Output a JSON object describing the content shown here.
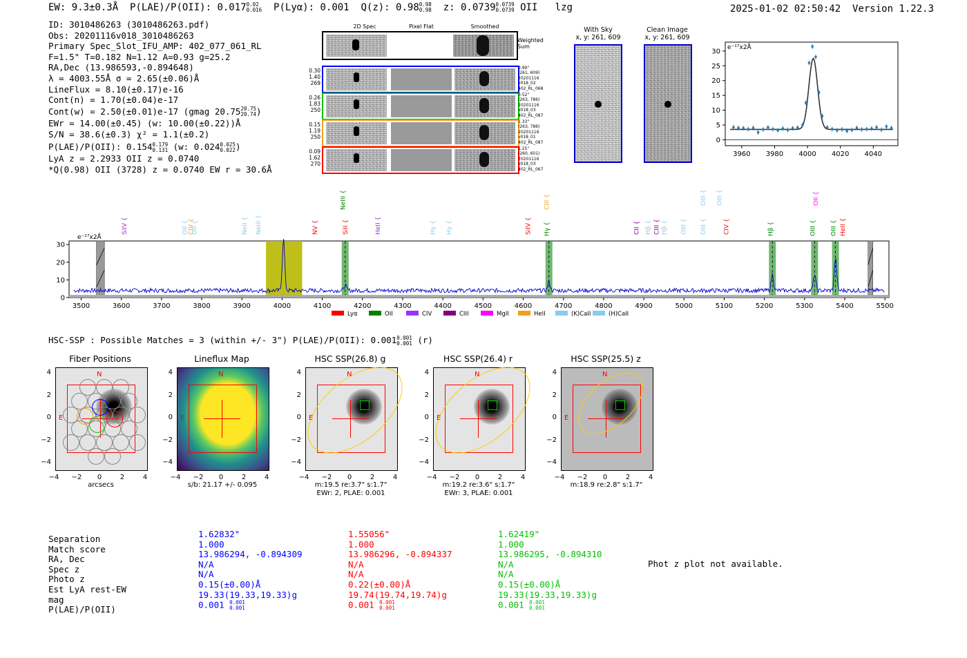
{
  "header": {
    "ew": "EW: 9.3±0.3Å",
    "plae_label": "P(LAE)/P(OII): 0.017",
    "plae_hi": "0.02",
    "plae_lo": "0.016",
    "plya": "P(Lyα): 0.001",
    "qz_label": "Q(z): 0.98",
    "qz_hi": "0.98",
    "qz_lo": "0.98",
    "z_label": "z: 0.0739",
    "z_hi": "0.0739",
    "z_lo": "0.0739",
    "line": "OII",
    "flag": "lzg",
    "timestamp": "2025-01-02 02:50:42",
    "version": "Version 1.22.3"
  },
  "info": {
    "id": "ID: 3010486263 (3010486263.pdf)",
    "obs": "Obs: 20201116v018_3010486263",
    "primary": "Primary Spec_Slot_IFU_AMP: 402_077_061_RL",
    "params": "F=1.5\"  T=0.182  N=1.12  A=0.93  g=25.2",
    "radec": "RA,Dec (13.986593,-0.894648)",
    "lambda": "λ = 4003.55Å  σ = 2.65(±0.06)Å",
    "lineflux": "LineFlux = 8.10(±0.17)e-16",
    "contn": "Cont(n) = 1.70(±0.04)e-17",
    "contw": "Cont(w) = 2.50(±0.01)e-17 (gmag 20.75",
    "contw_hi": "20.75",
    "contw_lo": "20.74",
    "contw_end": ")",
    "ewr": "EWr = 14.00(±0.45) (w: 10.00(±0.22))Å",
    "sn": "S/N = 38.6(±0.3)  χ² = 1.1(±0.2)",
    "plae": "P(LAE)/P(OII): 0.154",
    "plae_hi": "0.179",
    "plae_lo": "0.131",
    "plae_w": "(w: 0.024",
    "plae_w_hi": "0.025",
    "plae_w_lo": "0.022",
    "plae_end": ")",
    "lya": "LyA z = 2.2933  OII z = 0.0740",
    "q": "*Q(0.98) OII (3728) z = 0.0740  EW r = 30.6Å"
  },
  "cutouts": {
    "col_2d": "2D Spec",
    "col_flat": "Pixel Flat",
    "col_smooth": "Smoothed",
    "weighted": "Weighted",
    "sum": "Sum",
    "rows": [
      {
        "left": [
          "0.30",
          "1.40",
          "269"
        ],
        "right": [
          "0.99\"",
          "(261, 609)",
          "20201116",
          "v018_02",
          "402_RL_068"
        ],
        "color": "#0000ff"
      },
      {
        "left": [
          "0.26",
          "1.83",
          "250"
        ],
        "right": [
          "0.52\"",
          "(263, 786)",
          "20201116",
          "v018_03",
          "402_RL_087"
        ],
        "color": "#00c000"
      },
      {
        "left": [
          "0.15",
          "1.19",
          "250"
        ],
        "right": [
          "1.33\"",
          "(263, 786)",
          "20201116",
          "v018_01",
          "402_RL_087"
        ],
        "color": "#f0a020"
      },
      {
        "left": [
          "0.09",
          "1.62",
          "270"
        ],
        "right": [
          "1.25\"",
          "(260, 601)",
          "20201116",
          "v018_03",
          "402_RL_067"
        ],
        "color": "#ff0000"
      }
    ],
    "with_sky": "With Sky",
    "with_sky_xy": "x, y: 261, 609",
    "clean": "Clean Image",
    "clean_xy": "x, y: 261, 609"
  },
  "hsc": {
    "title": "HSC-SSP : Possible Matches = 3 (within +/- 3\")  P(LAE)/P(OII): 0.001",
    "title_hi": "0.001",
    "title_lo": "0.001",
    "title_band": "(r)",
    "panels": [
      {
        "title": "Fiber Positions",
        "cap1": "arcsecs",
        "cap2": ""
      },
      {
        "title": "Lineflux Map",
        "cap1": "s/b: 21.17 +/- 0.095",
        "cap2": ""
      },
      {
        "title": "HSC SSP(26.8) g",
        "cap1": "m:19.5  re:3.7\"  s:1.7\"",
        "cap2": "EWr: 2, PLAE: 0.001"
      },
      {
        "title": "HSC SSP(26.4) r",
        "cap1": "m:19.2  re:3.6\"  s:1.7\"",
        "cap2": "EWr: 3, PLAE: 0.001"
      },
      {
        "title": "HSC SSP(25.5) z",
        "cap1": "m:18.9  re:2.8\"  s:1.7\"",
        "cap2": ""
      }
    ],
    "label_n": "N",
    "label_e": "E",
    "ticks": [
      "4",
      "2",
      "0",
      "−2",
      "−4"
    ],
    "xticks": [
      "−4",
      "−2",
      "0",
      "2",
      "4"
    ]
  },
  "matches": {
    "labels": [
      "Separation",
      "Match score",
      "RA, Dec",
      "Spec z",
      "Photo z",
      "Est LyA rest-EW",
      "mag",
      "P(LAE)/P(OII)"
    ],
    "cols": [
      {
        "color": "#0000ff",
        "sep": "1.62832\"",
        "score": "1.000",
        "radec": "13.986294, -0.894309",
        "specz": "N/A",
        "photz": "N/A",
        "ew": "0.15(±0.00)Å",
        "mag": "19.33(19.33,19.33)g",
        "plae": "0.001",
        "plae_hi": "0.001",
        "plae_lo": "0.001"
      },
      {
        "color": "#ff0000",
        "sep": "1.55056\"",
        "score": "1.000",
        "radec": "13.986296, -0.894337",
        "specz": "N/A",
        "photz": "N/A",
        "ew": "0.22(±0.00)Å",
        "mag": "19.74(19.74,19.74)g",
        "plae": "0.001",
        "plae_hi": "0.001",
        "plae_lo": "0.001"
      },
      {
        "color": "#00c000",
        "sep": "1.62419\"",
        "score": "1.000",
        "radec": "13.986295, -0.894310",
        "specz": "N/A",
        "photz": "N/A",
        "ew": "0.15(±0.00)Å",
        "mag": "19.33(19.33,19.33)g",
        "plae": "0.001",
        "plae_hi": "0.001",
        "plae_lo": "0.001"
      }
    ],
    "phot_z": "Phot z plot not available."
  },
  "chart_data": [
    {
      "type": "scatter",
      "name": "line-fit",
      "title": "",
      "unit_label": "e⁻¹⁷x2Å",
      "xlim": [
        3950,
        4055
      ],
      "ylim": [
        -2,
        33
      ],
      "xticks": [
        3960,
        3980,
        4000,
        4020,
        4040
      ],
      "yticks": [
        0,
        5,
        10,
        15,
        20,
        25,
        30
      ],
      "x": [
        3955,
        3958,
        3961,
        3964,
        3967,
        3970,
        3973,
        3976,
        3979,
        3982,
        3985,
        3988,
        3991,
        3994,
        3997,
        3999,
        4001,
        4003,
        4005,
        4007,
        4009,
        4012,
        4015,
        4018,
        4021,
        4024,
        4027,
        4030,
        4033,
        4036,
        4039,
        4042,
        4045,
        4048,
        4051
      ],
      "y": [
        4.2,
        4.0,
        3.9,
        3.6,
        4.0,
        2.5,
        3.5,
        4.2,
        3.6,
        3.2,
        3.8,
        3.3,
        3.9,
        4.1,
        5.0,
        12.5,
        26.0,
        31.5,
        28.0,
        16.0,
        8.0,
        4.2,
        3.6,
        3.2,
        3.5,
        3.0,
        3.3,
        4.0,
        3.5,
        3.6,
        3.8,
        4.2,
        3.4,
        4.5,
        4.0
      ],
      "fit_center": 4003.5,
      "fit_sigma": 2.65,
      "fit_amp": 24.0,
      "fit_cont": 3.5
    },
    {
      "type": "line",
      "name": "full-spectrum",
      "unit_label": "e⁻¹⁷x2Å",
      "xlim": [
        3470,
        5510
      ],
      "ylim": [
        0,
        32
      ],
      "xticks": [
        3500,
        3600,
        3700,
        3800,
        3900,
        4000,
        4100,
        4200,
        4300,
        4400,
        4500,
        4600,
        4700,
        4800,
        4900,
        5000,
        5100,
        5200,
        5300,
        5400,
        5500
      ],
      "yticks": [
        0,
        10,
        20,
        30
      ],
      "peaks": [
        {
          "x": 4003.5,
          "amp": 29,
          "sigma": 3
        },
        {
          "x": 4157,
          "amp": 3,
          "sigma": 3
        },
        {
          "x": 4664,
          "amp": 5,
          "sigma": 3
        },
        {
          "x": 5220,
          "amp": 9,
          "sigma": 3
        },
        {
          "x": 5325,
          "amp": 9,
          "sigma": 3
        },
        {
          "x": 5377,
          "amp": 18,
          "sigma": 3
        }
      ],
      "continuum": 4,
      "highlight_band": [
        3960,
        4050
      ],
      "green_bands": [
        4157,
        4664,
        5220,
        5325,
        5377
      ],
      "masked_bands": [
        [
          3538,
          3558
        ],
        [
          5458,
          5470
        ]
      ],
      "line_labels": [
        {
          "name": "SiIV",
          "x": 3613,
          "color": "#9933cc",
          "row": 2
        },
        {
          "name": "OII",
          "x": 3763,
          "color": "#88ccee",
          "row": 2
        },
        {
          "name": "CIV",
          "x": 3778,
          "color": "#f0a020",
          "row": 2
        },
        {
          "name": "OII",
          "x": 3787,
          "color": "#88ccee",
          "row": 2
        },
        {
          "name": "NeII",
          "x": 3912,
          "color": "#88ccee",
          "row": 2
        },
        {
          "name": "NeIII",
          "x": 3946,
          "color": "#88ccee",
          "row": 2
        },
        {
          "name": "NV",
          "x": 4087,
          "color": "#ff0000",
          "row": 2
        },
        {
          "name": "NeIII",
          "x": 4157,
          "color": "#008000",
          "row": 0
        },
        {
          "name": "SiII",
          "x": 4163,
          "color": "#ff0000",
          "row": 2
        },
        {
          "name": "HeII",
          "x": 4243,
          "color": "#9933cc",
          "row": 2
        },
        {
          "name": "Hγ",
          "x": 4380,
          "color": "#88ccee",
          "row": 2
        },
        {
          "name": "Hγ",
          "x": 4420,
          "color": "#88ccee",
          "row": 2
        },
        {
          "name": "SiIV",
          "x": 4617,
          "color": "#ff0000",
          "row": 2
        },
        {
          "name": "CIII",
          "x": 4664,
          "color": "#f0a020",
          "row": 0
        },
        {
          "name": "Hγ",
          "x": 4664,
          "color": "#008000",
          "row": 3
        },
        {
          "name": "CII",
          "x": 4887,
          "color": "#800080",
          "row": 2
        },
        {
          "name": "Hβ",
          "x": 4915,
          "color": "#88ccee",
          "row": 2
        },
        {
          "name": "CIII",
          "x": 4937,
          "color": "#800080",
          "row": 2
        },
        {
          "name": "Hβ",
          "x": 4956,
          "color": "#88ccee",
          "row": 2
        },
        {
          "name": "OIII",
          "x": 5004,
          "color": "#88ccee",
          "row": 2
        },
        {
          "name": "OIII",
          "x": 5053,
          "color": "#88ccee",
          "row": 2
        },
        {
          "name": "OIII",
          "x": 5053,
          "color": "#88ccee",
          "row": 1
        },
        {
          "name": "OIII",
          "x": 5093,
          "color": "#88ccee",
          "row": 1
        },
        {
          "name": "CIV",
          "x": 5110,
          "color": "#ff0000",
          "row": 2
        },
        {
          "name": "Hβ",
          "x": 5220,
          "color": "#008000",
          "row": 3
        },
        {
          "name": "OII",
          "x": 5333,
          "color": "#ff00ff",
          "row": 1
        },
        {
          "name": "OIII",
          "x": 5325,
          "color": "#008000",
          "row": 3
        },
        {
          "name": "OIII",
          "x": 5377,
          "color": "#008000",
          "row": 3
        },
        {
          "name": "HeII",
          "x": 5400,
          "color": "#ff0000",
          "row": 3
        }
      ],
      "legend": [
        {
          "name": "Lyα",
          "color": "#ff0000"
        },
        {
          "name": "OII",
          "color": "#008000"
        },
        {
          "name": "CIV",
          "color": "#9933ff"
        },
        {
          "name": "CIII",
          "color": "#800080"
        },
        {
          "name": "MgII",
          "color": "#ff00ff"
        },
        {
          "name": "HeII",
          "color": "#f0a020"
        },
        {
          "name": "(K)CaII",
          "color": "#88ccee"
        },
        {
          "name": "(H)CaII",
          "color": "#88ccee"
        }
      ]
    }
  ]
}
